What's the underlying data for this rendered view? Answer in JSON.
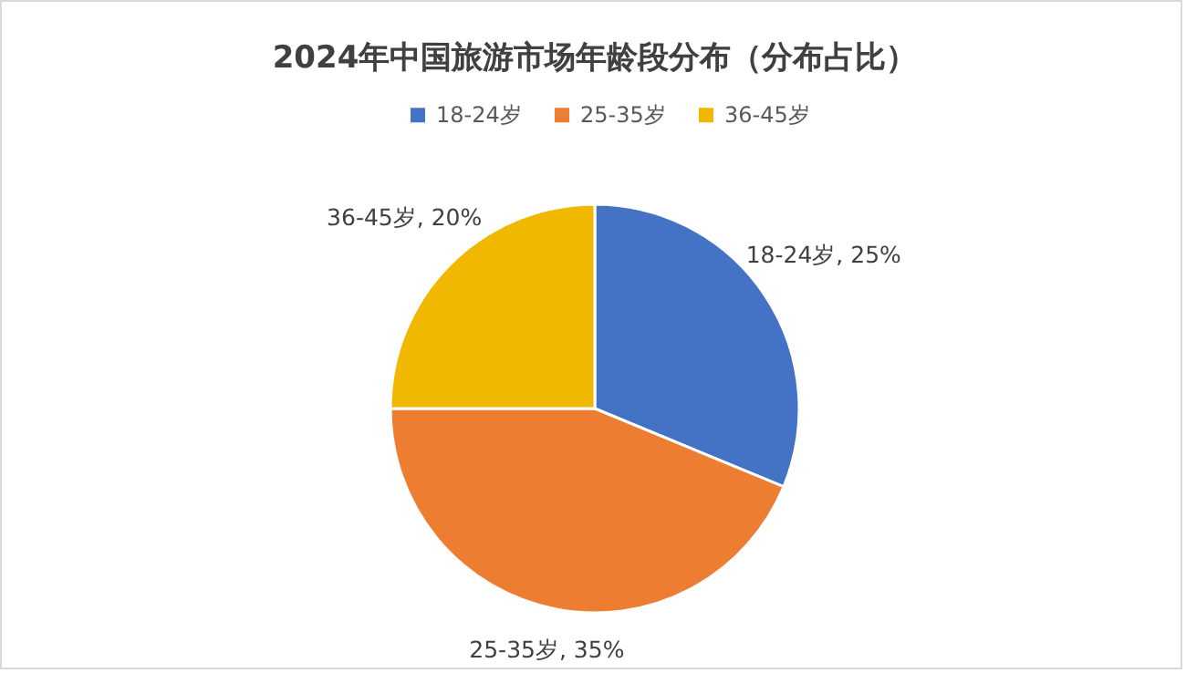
{
  "chart_data": {
    "type": "pie",
    "title": "2024年中国旅游市场年龄段分布（分布占比）",
    "categories": [
      "18-24岁",
      "25-35岁",
      "36-45岁"
    ],
    "values": [
      25,
      35,
      20
    ],
    "colors": [
      "#4472c4",
      "#ed7d31",
      "#f0b800"
    ],
    "value_labels": [
      "18-24岁, 25%",
      "25-35岁, 35%",
      "36-45岁, 20%"
    ],
    "legend": "top"
  }
}
